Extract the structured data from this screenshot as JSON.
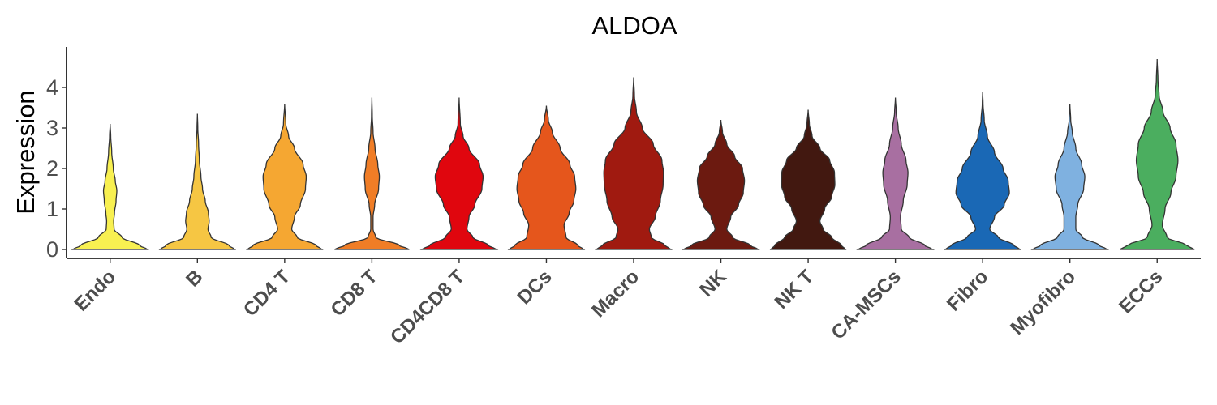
{
  "chart_data": {
    "type": "violin",
    "title": "ALDOA",
    "xlabel": "",
    "ylabel": "Expression",
    "ylim": [
      -0.2,
      4.95
    ],
    "yticks": [
      0,
      1,
      2,
      3,
      4
    ],
    "yticklabels": [
      "0",
      "1",
      "2",
      "3",
      "4"
    ],
    "grid": false,
    "legend": "none",
    "categories": [
      "Endo",
      "B",
      "CD4 T",
      "CD8 T",
      "CD4CD8 T",
      "DCs",
      "Macro",
      "NK",
      "NK T",
      "CA-MSCs",
      "Fibro",
      "Myofibro",
      "ECCs"
    ],
    "series": [
      {
        "category": "Endo",
        "color": "#F8F051",
        "max": 3.1,
        "profile": [
          [
            0,
            0.95
          ],
          [
            0.1,
            0.75
          ],
          [
            0.3,
            0.3
          ],
          [
            0.5,
            0.1
          ],
          [
            0.7,
            0.09
          ],
          [
            0.9,
            0.11
          ],
          [
            1.2,
            0.15
          ],
          [
            1.45,
            0.17
          ],
          [
            1.7,
            0.13
          ],
          [
            2.0,
            0.08
          ],
          [
            2.4,
            0.04
          ],
          [
            2.8,
            0.015
          ],
          [
            3.1,
            0.0
          ]
        ]
      },
      {
        "category": "B",
        "color": "#F6C643",
        "max": 3.35,
        "profile": [
          [
            0,
            0.95
          ],
          [
            0.1,
            0.8
          ],
          [
            0.3,
            0.35
          ],
          [
            0.5,
            0.27
          ],
          [
            0.7,
            0.3
          ],
          [
            0.9,
            0.28
          ],
          [
            1.2,
            0.2
          ],
          [
            1.5,
            0.13
          ],
          [
            1.8,
            0.09
          ],
          [
            2.2,
            0.05
          ],
          [
            2.6,
            0.03
          ],
          [
            3.0,
            0.01
          ],
          [
            3.35,
            0.0
          ]
        ]
      },
      {
        "category": "CD4 T",
        "color": "#F5A732",
        "max": 3.6,
        "profile": [
          [
            0,
            0.95
          ],
          [
            0.1,
            0.8
          ],
          [
            0.3,
            0.32
          ],
          [
            0.5,
            0.18
          ],
          [
            0.8,
            0.25
          ],
          [
            1.1,
            0.4
          ],
          [
            1.5,
            0.53
          ],
          [
            1.8,
            0.55
          ],
          [
            2.1,
            0.47
          ],
          [
            2.5,
            0.25
          ],
          [
            2.8,
            0.1
          ],
          [
            3.1,
            0.03
          ],
          [
            3.6,
            0.0
          ]
        ]
      },
      {
        "category": "CD8 T",
        "color": "#F07D26",
        "max": 3.75,
        "profile": [
          [
            0,
            0.95
          ],
          [
            0.1,
            0.7
          ],
          [
            0.3,
            0.1
          ],
          [
            0.5,
            0.03
          ],
          [
            0.8,
            0.03
          ],
          [
            1.1,
            0.07
          ],
          [
            1.5,
            0.17
          ],
          [
            1.8,
            0.19
          ],
          [
            2.1,
            0.15
          ],
          [
            2.5,
            0.08
          ],
          [
            2.9,
            0.03
          ],
          [
            3.3,
            0.01
          ],
          [
            3.75,
            0.0
          ]
        ]
      },
      {
        "category": "CD4CD8 T",
        "color": "#E0060E",
        "max": 3.75,
        "profile": [
          [
            0,
            0.95
          ],
          [
            0.1,
            0.75
          ],
          [
            0.3,
            0.35
          ],
          [
            0.5,
            0.2
          ],
          [
            0.8,
            0.25
          ],
          [
            1.1,
            0.4
          ],
          [
            1.5,
            0.58
          ],
          [
            1.8,
            0.61
          ],
          [
            2.1,
            0.52
          ],
          [
            2.5,
            0.25
          ],
          [
            2.8,
            0.1
          ],
          [
            3.1,
            0.03
          ],
          [
            3.75,
            0.0
          ]
        ]
      },
      {
        "category": "DCs",
        "color": "#E5561C",
        "max": 3.55,
        "profile": [
          [
            0,
            0.95
          ],
          [
            0.1,
            0.8
          ],
          [
            0.3,
            0.5
          ],
          [
            0.6,
            0.45
          ],
          [
            0.9,
            0.58
          ],
          [
            1.2,
            0.7
          ],
          [
            1.5,
            0.75
          ],
          [
            1.8,
            0.72
          ],
          [
            2.1,
            0.6
          ],
          [
            2.5,
            0.35
          ],
          [
            2.9,
            0.15
          ],
          [
            3.2,
            0.05
          ],
          [
            3.55,
            0.0
          ]
        ]
      },
      {
        "category": "Macro",
        "color": "#A01A10",
        "max": 4.25,
        "profile": [
          [
            0,
            0.95
          ],
          [
            0.1,
            0.8
          ],
          [
            0.3,
            0.45
          ],
          [
            0.5,
            0.4
          ],
          [
            0.8,
            0.55
          ],
          [
            1.2,
            0.68
          ],
          [
            1.6,
            0.75
          ],
          [
            1.9,
            0.76
          ],
          [
            2.2,
            0.72
          ],
          [
            2.6,
            0.5
          ],
          [
            3.0,
            0.22
          ],
          [
            3.4,
            0.07
          ],
          [
            3.8,
            0.02
          ],
          [
            4.25,
            0.0
          ]
        ]
      },
      {
        "category": "NK",
        "color": "#6C1A10",
        "max": 3.2,
        "profile": [
          [
            0,
            0.95
          ],
          [
            0.1,
            0.75
          ],
          [
            0.3,
            0.3
          ],
          [
            0.5,
            0.15
          ],
          [
            0.8,
            0.25
          ],
          [
            1.1,
            0.45
          ],
          [
            1.4,
            0.57
          ],
          [
            1.7,
            0.6
          ],
          [
            2.0,
            0.55
          ],
          [
            2.3,
            0.35
          ],
          [
            2.6,
            0.15
          ],
          [
            2.9,
            0.04
          ],
          [
            3.2,
            0.0
          ]
        ]
      },
      {
        "category": "NK T",
        "color": "#421810",
        "max": 3.45,
        "profile": [
          [
            0,
            0.95
          ],
          [
            0.1,
            0.85
          ],
          [
            0.3,
            0.6
          ],
          [
            0.5,
            0.38
          ],
          [
            0.7,
            0.3
          ],
          [
            1.0,
            0.42
          ],
          [
            1.3,
            0.6
          ],
          [
            1.6,
            0.68
          ],
          [
            1.9,
            0.67
          ],
          [
            2.2,
            0.55
          ],
          [
            2.5,
            0.3
          ],
          [
            2.8,
            0.1
          ],
          [
            3.1,
            0.03
          ],
          [
            3.45,
            0.0
          ]
        ]
      },
      {
        "category": "CA-MSCs",
        "color": "#A86FA1",
        "max": 3.75,
        "profile": [
          [
            0,
            0.95
          ],
          [
            0.1,
            0.75
          ],
          [
            0.3,
            0.35
          ],
          [
            0.5,
            0.15
          ],
          [
            0.8,
            0.13
          ],
          [
            1.2,
            0.2
          ],
          [
            1.6,
            0.3
          ],
          [
            1.9,
            0.32
          ],
          [
            2.2,
            0.27
          ],
          [
            2.6,
            0.15
          ],
          [
            3.0,
            0.07
          ],
          [
            3.4,
            0.02
          ],
          [
            3.75,
            0.0
          ]
        ]
      },
      {
        "category": "Fibro",
        "color": "#1A68B5",
        "max": 3.9,
        "profile": [
          [
            0,
            0.95
          ],
          [
            0.1,
            0.8
          ],
          [
            0.3,
            0.4
          ],
          [
            0.5,
            0.18
          ],
          [
            0.8,
            0.3
          ],
          [
            1.1,
            0.55
          ],
          [
            1.4,
            0.68
          ],
          [
            1.7,
            0.65
          ],
          [
            2.0,
            0.52
          ],
          [
            2.4,
            0.3
          ],
          [
            2.8,
            0.12
          ],
          [
            3.2,
            0.04
          ],
          [
            3.6,
            0.01
          ],
          [
            3.9,
            0.0
          ]
        ]
      },
      {
        "category": "Myofibro",
        "color": "#7FB1E0",
        "max": 3.6,
        "profile": [
          [
            0,
            0.95
          ],
          [
            0.1,
            0.75
          ],
          [
            0.3,
            0.32
          ],
          [
            0.5,
            0.15
          ],
          [
            0.8,
            0.15
          ],
          [
            1.1,
            0.2
          ],
          [
            1.5,
            0.35
          ],
          [
            1.8,
            0.38
          ],
          [
            2.1,
            0.3
          ],
          [
            2.5,
            0.15
          ],
          [
            2.9,
            0.06
          ],
          [
            3.2,
            0.02
          ],
          [
            3.6,
            0.0
          ]
        ]
      },
      {
        "category": "ECCs",
        "color": "#4BAE5F",
        "max": 4.7,
        "profile": [
          [
            0,
            0.95
          ],
          [
            0.1,
            0.75
          ],
          [
            0.3,
            0.25
          ],
          [
            0.6,
            0.13
          ],
          [
            1.0,
            0.2
          ],
          [
            1.4,
            0.35
          ],
          [
            1.8,
            0.48
          ],
          [
            2.2,
            0.53
          ],
          [
            2.6,
            0.48
          ],
          [
            3.0,
            0.33
          ],
          [
            3.4,
            0.15
          ],
          [
            3.8,
            0.05
          ],
          [
            4.2,
            0.02
          ],
          [
            4.7,
            0.0
          ]
        ]
      }
    ]
  }
}
